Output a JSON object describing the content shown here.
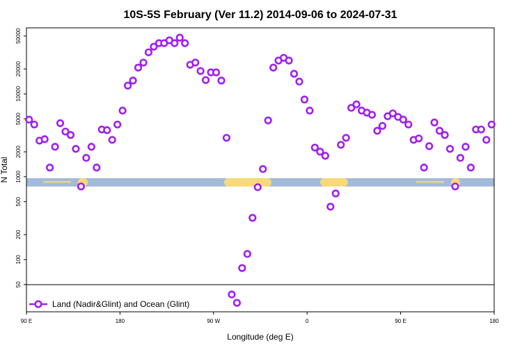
{
  "chart_data": {
    "type": "scatter",
    "title": "10S-5S February (Ver 11.2)   2014-09-06 to 2024-07-31",
    "x_label": "Longitude (deg E)",
    "y_label": "N Total",
    "log_y": true,
    "xlim": [
      90,
      540
    ],
    "ylim": [
      23.4,
      62800
    ],
    "xticks": [
      {
        "value": 90,
        "label": "90 E"
      },
      180,
      {
        "value": 270,
        "label": "90 W"
      },
      {
        "value": 360,
        "label": "0"
      },
      {
        "value": 450,
        "label": "90 E"
      },
      {
        "value": 540,
        "label": "180"
      }
    ],
    "yticks": [
      50,
      100,
      200,
      500,
      1000,
      2000,
      5000,
      10000,
      20000,
      50000
    ],
    "series": [
      {
        "name": "Land (Nadir&Glint) and Ocean (Glint)",
        "color": "#a020f0",
        "x": [
          92.5,
          97.5,
          102.5,
          107.5,
          112.5,
          117.5,
          122.5,
          127.5,
          132.5,
          137.5,
          142.5,
          147.5,
          152.5,
          157.5,
          162.5,
          167.5,
          172.5,
          177.5,
          182.5,
          187.5,
          192.5,
          197.5,
          202.5,
          207.5,
          212.5,
          217.5,
          222.5,
          227.5,
          232.5,
          237.5,
          242.5,
          247.5,
          252.5,
          257.5,
          262.5,
          267.5,
          272.5,
          277.5,
          282.5,
          287.5,
          292.5,
          297.5,
          302.5,
          307.5,
          312.5,
          317.5,
          322.5,
          327.5,
          332.5,
          337.5,
          342.5,
          347.5,
          352.5,
          357.5,
          362.5,
          367.5,
          372.5,
          377.5,
          382.5,
          387.5,
          392.5,
          397.5,
          402.5,
          407.5,
          412.5,
          417.5,
          422.5,
          427.5,
          432.5,
          437.5,
          442.5,
          447.5,
          452.5,
          457.5,
          462.5,
          467.5,
          472.5,
          477.5,
          482.5,
          487.5,
          492.5,
          497.5,
          502.5,
          507.5,
          512.5,
          517.5,
          522.5,
          527.5,
          532.5,
          537.5
        ],
        "values": [
          4900,
          4270,
          2730,
          2840,
          1290,
          2300,
          4430,
          3510,
          3190,
          2170,
          763,
          1690,
          2300,
          1290,
          3720,
          3650,
          2790,
          4270,
          6290,
          12600,
          14500,
          20800,
          23900,
          31800,
          37200,
          41000,
          41000,
          44400,
          41000,
          47800,
          41000,
          22500,
          23900,
          18900,
          14700,
          18200,
          18200,
          14500,
          2950,
          37.9,
          30,
          79,
          117,
          319,
          748,
          1240,
          4790,
          20800,
          25300,
          27300,
          25300,
          17500,
          14100,
          8560,
          6290,
          2250,
          2010,
          1790,
          435,
          628,
          2430,
          2950,
          6790,
          7480,
          6290,
          5940,
          5600,
          3590,
          4110,
          5380,
          5820,
          5280,
          4900,
          4270,
          2790,
          2900,
          1290,
          2340,
          4520,
          3590,
          3190,
          2170,
          763,
          1690,
          2300,
          1290,
          3720,
          3720,
          2790,
          4270
        ]
      }
    ]
  }
}
